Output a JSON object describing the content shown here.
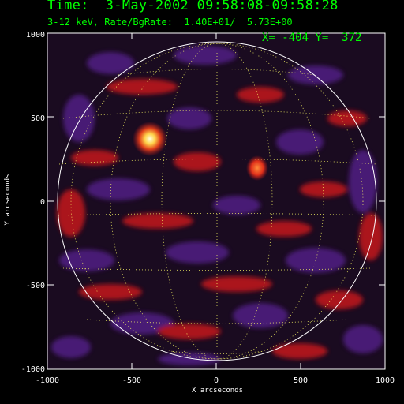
{
  "header": {
    "title": "Time:  3-May-2002 09:58:08-09:58:28",
    "subtitle": "3-12 keV, Rate/BgRate:  1.40E+01/  5.73E+00",
    "cursor_readout": "X= -404 Y=  372"
  },
  "axes": {
    "xlabel": "X arcseconds",
    "ylabel": "Y arcseconds",
    "x_ticks": [
      "-1000",
      "-500",
      "0",
      "500",
      "1000"
    ],
    "y_ticks": [
      "1000",
      "500",
      "0",
      "-500",
      "-1000"
    ],
    "x_range": [
      -1000,
      1000
    ],
    "y_range": [
      -1000,
      1000
    ]
  },
  "colors": {
    "text_green": "#00ff00",
    "axis_white": "#ffffff",
    "background": "#000000",
    "colormap_low": "#4b1a7a",
    "colormap_mid": "#b3161b",
    "colormap_high": "#ffff9e"
  },
  "image": {
    "description_icon": "solar-disk-image",
    "grid": true,
    "limb_circle": true
  }
}
